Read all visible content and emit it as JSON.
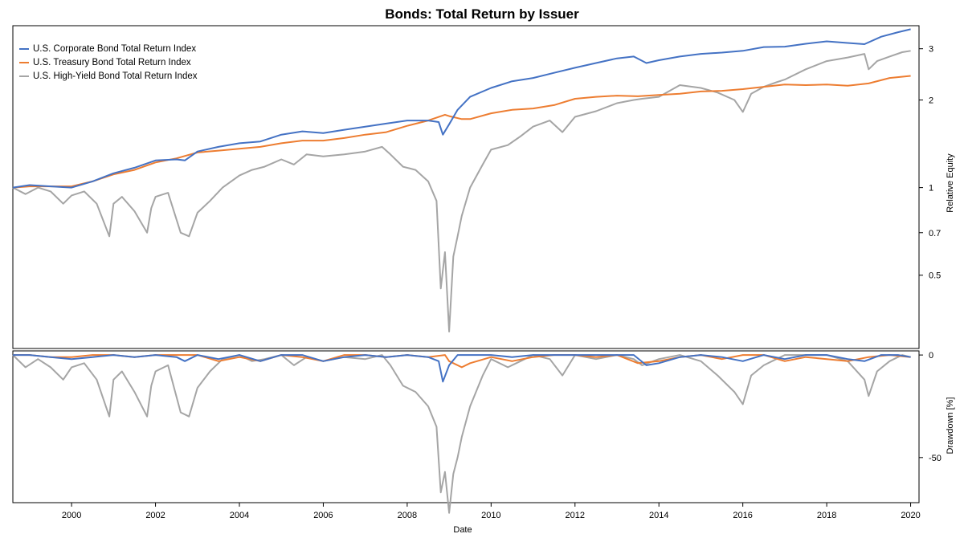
{
  "chart_data": {
    "type": "line",
    "title": "Bonds: Total Return by Issuer",
    "xlabel": "Date",
    "x_ticks": [
      "2000",
      "2002",
      "2004",
      "2006",
      "2008",
      "2010",
      "2012",
      "2014",
      "2016",
      "2018",
      "2020"
    ],
    "xlim": [
      1998.6,
      2020.2
    ],
    "series": [
      {
        "name": "U.S. Corporate Bond Total Return Index",
        "color": "#4472c4",
        "x": [
          1998.6,
          1999.0,
          1999.5,
          2000.0,
          2000.5,
          2001.0,
          2001.5,
          2002.0,
          2002.5,
          2002.7,
          2003.0,
          2003.5,
          2004.0,
          2004.5,
          2005.0,
          2005.5,
          2006.0,
          2006.5,
          2007.0,
          2007.5,
          2008.0,
          2008.5,
          2008.75,
          2008.85,
          2009.0,
          2009.2,
          2009.5,
          2010.0,
          2010.5,
          2011.0,
          2011.5,
          2012.0,
          2012.5,
          2013.0,
          2013.4,
          2013.7,
          2014.0,
          2014.5,
          2015.0,
          2015.5,
          2016.0,
          2016.5,
          2017.0,
          2017.5,
          2018.0,
          2018.5,
          2018.9,
          2019.3,
          2019.7,
          2020.0
        ],
        "values": [
          1.0,
          1.02,
          1.01,
          1.0,
          1.05,
          1.12,
          1.17,
          1.24,
          1.25,
          1.24,
          1.33,
          1.38,
          1.42,
          1.44,
          1.52,
          1.56,
          1.54,
          1.58,
          1.62,
          1.66,
          1.7,
          1.7,
          1.68,
          1.52,
          1.65,
          1.85,
          2.05,
          2.2,
          2.32,
          2.38,
          2.48,
          2.58,
          2.68,
          2.78,
          2.82,
          2.68,
          2.74,
          2.82,
          2.88,
          2.91,
          2.95,
          3.04,
          3.05,
          3.12,
          3.18,
          3.14,
          3.11,
          3.3,
          3.42,
          3.5
        ],
        "drawdown": [
          0,
          0,
          -1,
          -2,
          -1,
          0,
          -1,
          0,
          -1,
          -3,
          0,
          -2,
          0,
          -3,
          0,
          0,
          -3,
          -1,
          0,
          -1,
          0,
          -1,
          -3,
          -13,
          -5,
          0,
          0,
          0,
          -1,
          0,
          0,
          0,
          0,
          0,
          0,
          -5,
          -4,
          -1,
          0,
          -1,
          -3,
          0,
          -2,
          0,
          0,
          -2,
          -3,
          0,
          0,
          -1
        ]
      },
      {
        "name": "U.S. Treasury Bond Total Return Index",
        "color": "#ed7d31",
        "x": [
          1998.6,
          1999.0,
          1999.5,
          2000.0,
          2000.5,
          2001.0,
          2001.5,
          2002.0,
          2002.5,
          2003.0,
          2003.5,
          2004.0,
          2004.5,
          2005.0,
          2005.5,
          2006.0,
          2006.5,
          2007.0,
          2007.5,
          2008.0,
          2008.5,
          2008.9,
          2009.0,
          2009.3,
          2009.5,
          2010.0,
          2010.5,
          2011.0,
          2011.5,
          2012.0,
          2012.5,
          2013.0,
          2013.5,
          2014.0,
          2014.5,
          2015.0,
          2015.5,
          2016.0,
          2016.5,
          2017.0,
          2017.5,
          2018.0,
          2018.5,
          2019.0,
          2019.5,
          2020.0
        ],
        "values": [
          1.0,
          1.01,
          1.01,
          1.01,
          1.05,
          1.11,
          1.15,
          1.22,
          1.26,
          1.32,
          1.34,
          1.36,
          1.38,
          1.42,
          1.45,
          1.45,
          1.48,
          1.52,
          1.55,
          1.63,
          1.7,
          1.78,
          1.76,
          1.72,
          1.72,
          1.8,
          1.85,
          1.87,
          1.92,
          2.02,
          2.05,
          2.07,
          2.06,
          2.08,
          2.1,
          2.14,
          2.15,
          2.18,
          2.22,
          2.26,
          2.25,
          2.26,
          2.24,
          2.28,
          2.38,
          2.42
        ],
        "drawdown": [
          0,
          0,
          -1,
          -1,
          0,
          0,
          -1,
          0,
          0,
          0,
          -3,
          -1,
          -3,
          0,
          -1,
          -3,
          0,
          0,
          -1,
          0,
          -1,
          0,
          -3,
          -6,
          -4,
          -1,
          -3,
          -1,
          0,
          0,
          -1,
          0,
          -4,
          -3,
          -1,
          0,
          -2,
          0,
          0,
          -3,
          -1,
          -2,
          -3,
          -1,
          0,
          -1
        ]
      },
      {
        "name": "U.S. High-Yield Bond Total Return Index",
        "color": "#a5a5a5",
        "x": [
          1998.6,
          1998.9,
          1999.2,
          1999.5,
          1999.8,
          2000.0,
          2000.3,
          2000.6,
          2000.9,
          2001.0,
          2001.2,
          2001.5,
          2001.8,
          2001.9,
          2002.0,
          2002.3,
          2002.6,
          2002.8,
          2003.0,
          2003.3,
          2003.6,
          2004.0,
          2004.3,
          2004.6,
          2005.0,
          2005.3,
          2005.6,
          2006.0,
          2006.5,
          2007.0,
          2007.4,
          2007.6,
          2007.9,
          2008.2,
          2008.5,
          2008.7,
          2008.8,
          2008.9,
          2009.0,
          2009.1,
          2009.2,
          2009.3,
          2009.5,
          2009.8,
          2010.0,
          2010.4,
          2010.7,
          2011.0,
          2011.4,
          2011.7,
          2012.0,
          2012.5,
          2013.0,
          2013.4,
          2013.6,
          2014.0,
          2014.5,
          2015.0,
          2015.4,
          2015.8,
          2016.0,
          2016.2,
          2016.5,
          2016.8,
          2017.0,
          2017.5,
          2018.0,
          2018.5,
          2018.9,
          2019.0,
          2019.2,
          2019.5,
          2019.8,
          2020.0
        ],
        "values": [
          1.0,
          0.95,
          1.0,
          0.97,
          0.88,
          0.94,
          0.97,
          0.88,
          0.68,
          0.88,
          0.93,
          0.83,
          0.7,
          0.85,
          0.93,
          0.96,
          0.7,
          0.68,
          0.82,
          0.9,
          1.0,
          1.1,
          1.15,
          1.18,
          1.25,
          1.2,
          1.3,
          1.28,
          1.3,
          1.33,
          1.38,
          1.3,
          1.18,
          1.15,
          1.05,
          0.9,
          0.45,
          0.6,
          0.32,
          0.58,
          0.68,
          0.8,
          1.0,
          1.2,
          1.35,
          1.4,
          1.5,
          1.62,
          1.7,
          1.55,
          1.75,
          1.83,
          1.95,
          2.0,
          2.02,
          2.05,
          2.25,
          2.2,
          2.12,
          2.0,
          1.82,
          2.1,
          2.22,
          2.3,
          2.35,
          2.55,
          2.72,
          2.8,
          2.88,
          2.55,
          2.72,
          2.82,
          2.92,
          2.95
        ],
        "drawdown": [
          0,
          -6,
          -2,
          -6,
          -12,
          -6,
          -4,
          -12,
          -30,
          -12,
          -8,
          -18,
          -30,
          -15,
          -8,
          -5,
          -28,
          -30,
          -16,
          -8,
          -2,
          0,
          -3,
          -2,
          0,
          -5,
          -1,
          -3,
          -1,
          -2,
          0,
          -5,
          -15,
          -18,
          -25,
          -35,
          -67,
          -57,
          -77,
          -58,
          -50,
          -40,
          -25,
          -10,
          -2,
          -6,
          -3,
          0,
          -2,
          -10,
          0,
          -2,
          0,
          -2,
          -5,
          -2,
          0,
          -3,
          -10,
          -18,
          -24,
          -10,
          -5,
          -2,
          0,
          0,
          0,
          -3,
          -12,
          -20,
          -8,
          -3,
          0,
          -1
        ]
      }
    ],
    "top_panel": {
      "ylabel": "Relative Equity",
      "scale": "log",
      "y_ticks": [
        "0.5",
        "0.7",
        "1",
        "2",
        "3"
      ],
      "ylim": [
        0.28,
        3.6
      ]
    },
    "bottom_panel": {
      "ylabel": "Drawdown [%]",
      "y_ticks": [
        "0",
        "-50"
      ],
      "ylim": [
        -72,
        2
      ]
    },
    "legend_position": "top-left"
  }
}
